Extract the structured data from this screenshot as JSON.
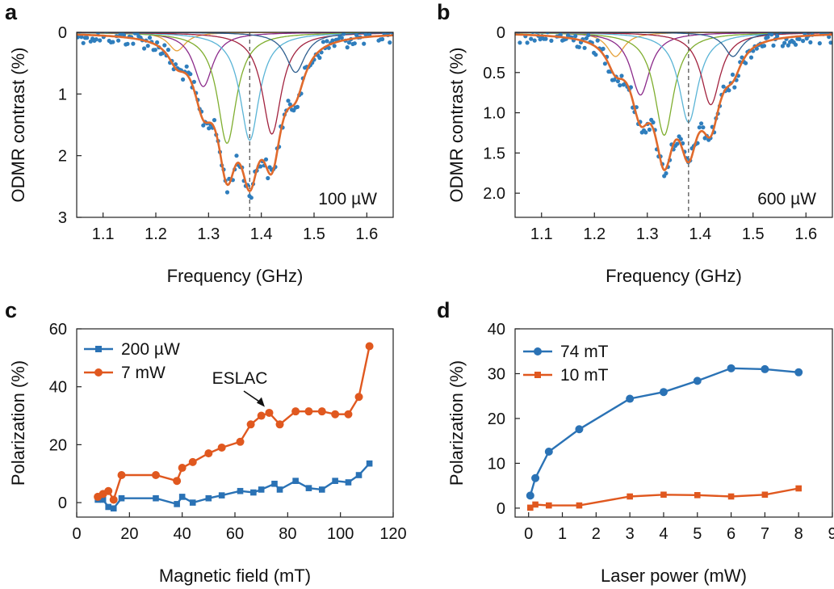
{
  "chart_data": [
    {
      "panel": "a",
      "type": "scatter",
      "xlabel": "Frequency (GHz)",
      "ylabel": "ODMR contrast (%)",
      "xlim": [
        1.05,
        1.65
      ],
      "ylim": [
        3,
        0
      ],
      "xticks": [
        "1.1",
        "1.2",
        "1.3",
        "1.4",
        "1.5",
        "1.6"
      ],
      "yticks": [
        "0",
        "1",
        "2",
        "3"
      ],
      "annotation": "100 µW",
      "dashed_x": 1.378,
      "fit_color": "#e06a2c",
      "point_color": "#2f7ebd",
      "lines": [
        {
          "center": 1.24,
          "depth": 0.3,
          "width": 0.02,
          "color": "#e6a23c"
        },
        {
          "center": 1.29,
          "depth": 0.88,
          "width": 0.022,
          "color": "#8b2a8a"
        },
        {
          "center": 1.335,
          "depth": 1.8,
          "width": 0.022,
          "color": "#7fae2f"
        },
        {
          "center": 1.378,
          "depth": 1.75,
          "width": 0.022,
          "color": "#5ab4d6"
        },
        {
          "center": 1.42,
          "depth": 1.65,
          "width": 0.022,
          "color": "#a2233f"
        },
        {
          "center": 1.465,
          "depth": 0.65,
          "width": 0.022,
          "color": "#2f5f8f"
        }
      ]
    },
    {
      "panel": "b",
      "type": "scatter",
      "xlabel": "Frequency (GHz)",
      "ylabel": "ODMR contrast (%)",
      "xlim": [
        1.05,
        1.65
      ],
      "ylim": [
        2.3,
        0
      ],
      "xticks": [
        "1.1",
        "1.2",
        "1.3",
        "1.4",
        "1.5",
        "1.6"
      ],
      "yticks": [
        "0",
        "0.5",
        "1.0",
        "1.5",
        "2.0"
      ],
      "annotation": "600 µW",
      "dashed_x": 1.378,
      "fit_color": "#e06a2c",
      "point_color": "#2f7ebd",
      "lines": [
        {
          "center": 1.24,
          "depth": 0.3,
          "width": 0.02,
          "color": "#e6a23c"
        },
        {
          "center": 1.287,
          "depth": 0.78,
          "width": 0.022,
          "color": "#8b2a8a"
        },
        {
          "center": 1.332,
          "depth": 1.28,
          "width": 0.022,
          "color": "#7fae2f"
        },
        {
          "center": 1.378,
          "depth": 1.12,
          "width": 0.022,
          "color": "#5ab4d6"
        },
        {
          "center": 1.42,
          "depth": 0.9,
          "width": 0.022,
          "color": "#a2233f"
        },
        {
          "center": 1.462,
          "depth": 0.3,
          "width": 0.02,
          "color": "#2f5f8f"
        }
      ]
    },
    {
      "panel": "c",
      "type": "line",
      "xlabel": "Magnetic field (mT)",
      "ylabel": "Polarization (%)",
      "xlim": [
        0,
        120
      ],
      "ylim": [
        -5,
        60
      ],
      "xticks": [
        "0",
        "20",
        "40",
        "60",
        "80",
        "100",
        "120"
      ],
      "yticks": [
        "0",
        "20",
        "40",
        "60"
      ],
      "annotation": "ESLAC",
      "legend_position": "top-left",
      "series": [
        {
          "name": "200 µW",
          "color": "#2a72b5",
          "marker": "square",
          "x": [
            8,
            10,
            12,
            14,
            17,
            30,
            38,
            40,
            44,
            50,
            55,
            62,
            67,
            70,
            75,
            77,
            83,
            88,
            93,
            98,
            103,
            107,
            111
          ],
          "y": [
            1,
            1,
            -1.5,
            -2,
            1.5,
            1.5,
            -0.5,
            2,
            0,
            1.5,
            2.5,
            4,
            3.5,
            4.5,
            6.5,
            4.5,
            7.5,
            5,
            4.5,
            7.5,
            7,
            9.5,
            13.5
          ]
        },
        {
          "name": "7 mW",
          "color": "#e0581f",
          "marker": "circle",
          "x": [
            8,
            10,
            12,
            14,
            17,
            30,
            38,
            40,
            44,
            50,
            55,
            62,
            66,
            70,
            73,
            77,
            83,
            88,
            93,
            98,
            103,
            107,
            111
          ],
          "y": [
            2,
            3,
            4,
            1,
            9.5,
            9.5,
            7.5,
            12,
            14,
            17,
            19,
            21,
            27,
            30,
            31,
            27,
            31.5,
            31.5,
            31.5,
            30.5,
            30.5,
            36.5,
            54
          ]
        }
      ]
    },
    {
      "panel": "d",
      "type": "line",
      "xlabel": "Laser power (mW)",
      "ylabel": "Polarization (%)",
      "xlim": [
        -0.4,
        9
      ],
      "ylim": [
        -2,
        40
      ],
      "xticks": [
        "0",
        "1",
        "2",
        "3",
        "4",
        "5",
        "6",
        "7",
        "8",
        "9"
      ],
      "yticks": [
        "0",
        "10",
        "20",
        "30",
        "40"
      ],
      "legend_position": "top-left",
      "series": [
        {
          "name": "74 mT",
          "color": "#2a72b5",
          "marker": "circle",
          "x": [
            0.05,
            0.2,
            0.6,
            1.5,
            3,
            4,
            5,
            6,
            7,
            8
          ],
          "y": [
            2.8,
            6.7,
            12.6,
            17.6,
            24.4,
            25.9,
            28.4,
            31.2,
            31.0,
            30.3
          ]
        },
        {
          "name": "10 mT",
          "color": "#e0581f",
          "marker": "square",
          "x": [
            0.05,
            0.2,
            0.6,
            1.5,
            3,
            4,
            5,
            6,
            7,
            8
          ],
          "y": [
            0.1,
            0.8,
            0.6,
            0.6,
            2.6,
            3.0,
            2.9,
            2.6,
            3.0,
            4.4
          ]
        }
      ]
    }
  ],
  "panel_letters": [
    "a",
    "b",
    "c",
    "d"
  ]
}
